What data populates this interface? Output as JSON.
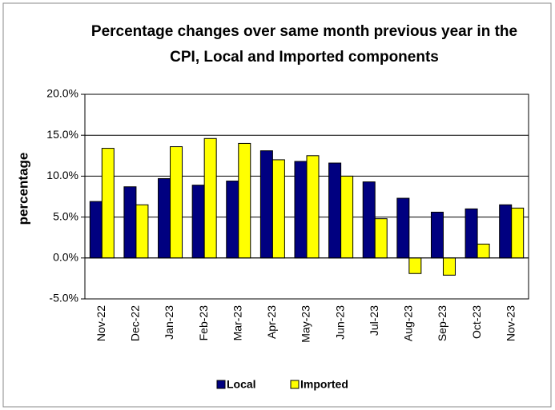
{
  "chart_data": {
    "type": "bar",
    "title": "Percentage changes over same month previous year in the CPI, Local and Imported components",
    "y_label": "percentage",
    "categories": [
      "Nov-22",
      "Dec-22",
      "Jan-23",
      "Feb-23",
      "Mar-23",
      "Apr-23",
      "May-23",
      "Jun-23",
      "Jul-23",
      "Aug-23",
      "Sep-23",
      "Oct-23",
      "Nov-23"
    ],
    "series": [
      {
        "name": "Local",
        "color": "#000080",
        "values": [
          6.9,
          8.7,
          9.7,
          8.9,
          9.4,
          13.1,
          11.8,
          11.6,
          9.3,
          7.3,
          5.6,
          6.0,
          6.5
        ]
      },
      {
        "name": "Imported",
        "color": "#ffff00",
        "values": [
          13.4,
          6.5,
          13.6,
          14.6,
          14.0,
          12.0,
          12.5,
          10.0,
          4.8,
          -1.9,
          -2.1,
          1.7,
          6.1
        ]
      }
    ],
    "ylim": [
      -5,
      20
    ],
    "yticks": [
      {
        "value": -5,
        "label": "-5.0%"
      },
      {
        "value": 0,
        "label": "0.0%"
      },
      {
        "value": 5,
        "label": "5.0%"
      },
      {
        "value": 10,
        "label": "10.0%"
      },
      {
        "value": 15,
        "label": "15.0%"
      },
      {
        "value": 20,
        "label": "20.0%"
      }
    ],
    "grid": true,
    "legend": "bottom"
  }
}
